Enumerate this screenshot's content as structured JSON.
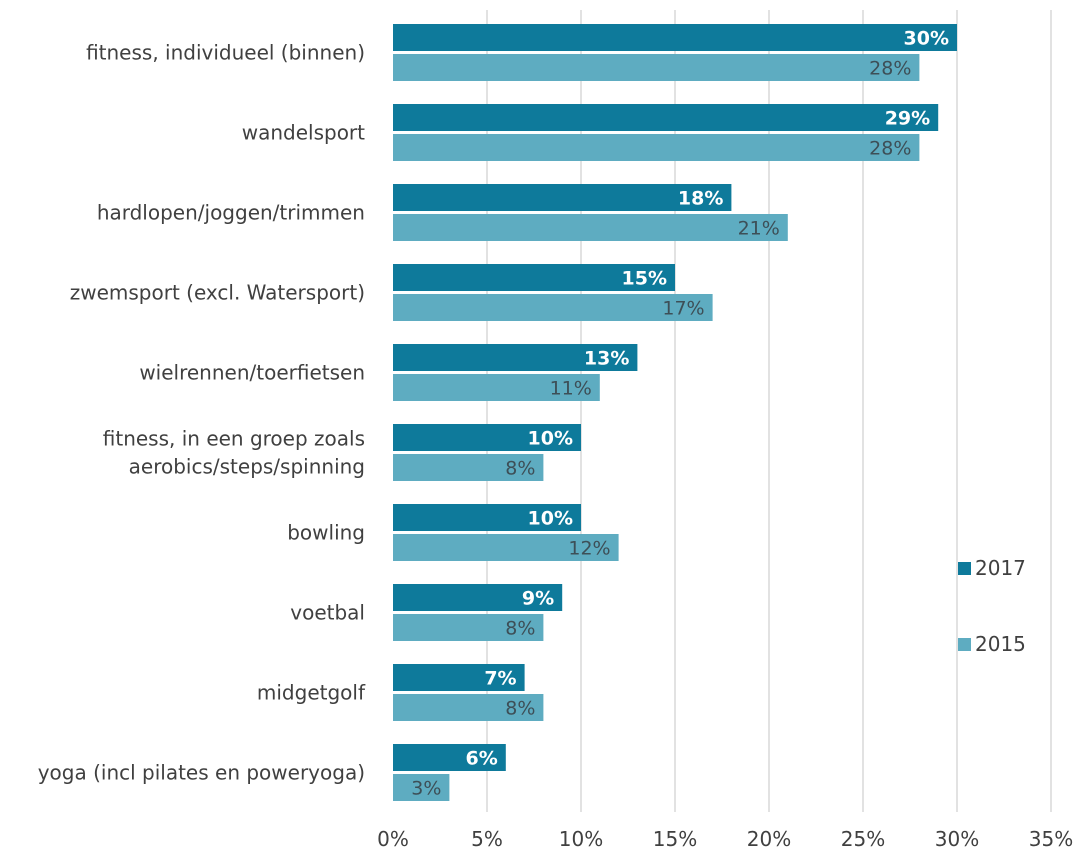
{
  "chart_data": {
    "type": "bar",
    "orientation": "horizontal",
    "categories": [
      "fitness, individueel (binnen)",
      "wandelsport",
      "hardlopen/joggen/trimmen",
      "zwemsport (excl. Watersport)",
      "wielrennen/toerfietsen",
      "fitness, in een groep zoals aerobics/steps/spinning",
      "bowling",
      "voetbal",
      "midgetgolf",
      "yoga (incl pilates en poweryoga)"
    ],
    "category_lines": [
      [
        "fitness, individueel (binnen)"
      ],
      [
        "wandelsport"
      ],
      [
        "hardlopen/joggen/trimmen"
      ],
      [
        "zwemsport (excl. Watersport)"
      ],
      [
        "wielrennen/toerfietsen"
      ],
      [
        "fitness, in een groep zoals",
        "aerobics/steps/spinning"
      ],
      [
        "bowling"
      ],
      [
        "voetbal"
      ],
      [
        "midgetgolf"
      ],
      [
        "yoga (incl pilates en poweryoga)"
      ]
    ],
    "series": [
      {
        "name": "2017",
        "color": "#0e7a9b",
        "values": [
          30,
          29,
          18,
          15,
          13,
          10,
          10,
          9,
          7,
          6
        ],
        "labels": [
          "30%",
          "29%",
          "18%",
          "15%",
          "13%",
          "10%",
          "10%",
          "9%",
          "7%",
          "6%"
        ]
      },
      {
        "name": "2015",
        "color": "#5eacc1",
        "values": [
          28,
          28,
          21,
          17,
          11,
          8,
          12,
          8,
          8,
          3
        ],
        "labels": [
          "28%",
          "28%",
          "21%",
          "17%",
          "11%",
          "8%",
          "12%",
          "8%",
          "8%",
          "3%"
        ]
      }
    ],
    "xlim": [
      0,
      35
    ],
    "x_ticks": [
      0,
      5,
      10,
      15,
      20,
      25,
      30,
      35
    ],
    "x_tick_labels": [
      "0%",
      "5%",
      "10%",
      "15%",
      "20%",
      "25%",
      "30%",
      "35%"
    ],
    "grid": "vertical",
    "legend": "right",
    "title": "",
    "xlabel": "",
    "ylabel": ""
  }
}
